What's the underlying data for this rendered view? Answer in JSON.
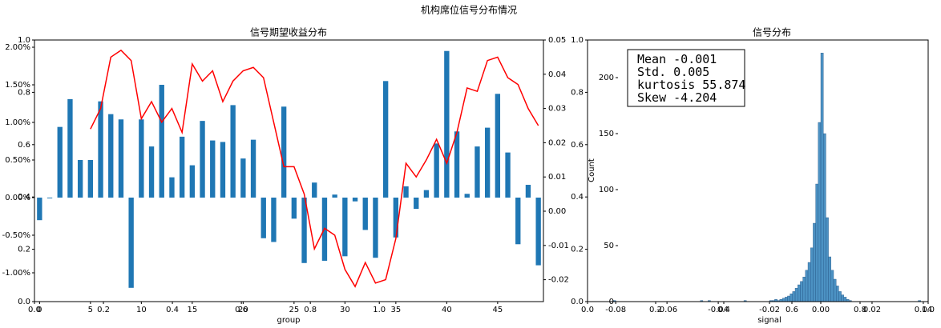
{
  "title": "机构席位信号分布情况",
  "chart_data": [
    {
      "type": "bar",
      "title": "信号期望收益分布",
      "xlabel": "group",
      "x": [
        0,
        1,
        2,
        3,
        4,
        5,
        6,
        7,
        8,
        9,
        10,
        11,
        12,
        13,
        14,
        15,
        16,
        17,
        18,
        19,
        20,
        21,
        22,
        23,
        24,
        25,
        26,
        27,
        28,
        29,
        30,
        31,
        32,
        33,
        34,
        35,
        36,
        37,
        38,
        39,
        40,
        41,
        42,
        43,
        44,
        45,
        46,
        47,
        48,
        49
      ],
      "series": [
        {
          "type": "bar",
          "color": "#1f77b4",
          "values": [
            -0.3,
            -0.01,
            0.94,
            1.31,
            0.5,
            0.5,
            1.28,
            1.11,
            1.04,
            -1.2,
            1.04,
            0.68,
            1.5,
            0.27,
            0.81,
            0.43,
            1.02,
            0.76,
            0.74,
            1.23,
            0.52,
            0.77,
            -0.54,
            -0.59,
            1.21,
            -0.28,
            -0.87,
            0.2,
            -0.84,
            0.04,
            -0.78,
            -0.05,
            -0.43,
            -0.8,
            1.55,
            -0.53,
            0.15,
            -0.15,
            0.1,
            0.72,
            1.95,
            0.88,
            0.05,
            0.68,
            0.93,
            1.38,
            0.6,
            -0.62,
            0.17,
            -0.9
          ]
        },
        {
          "type": "line",
          "color": "#ff0000",
          "axis": "y2",
          "values": [
            null,
            null,
            null,
            null,
            null,
            0.024,
            0.03,
            0.045,
            0.047,
            0.044,
            0.027,
            0.032,
            0.026,
            0.03,
            0.023,
            0.043,
            0.038,
            0.041,
            0.032,
            0.038,
            0.041,
            0.042,
            0.039,
            0.026,
            0.013,
            0.013,
            0.005,
            -0.011,
            -0.005,
            -0.007,
            -0.017,
            -0.022,
            -0.015,
            -0.021,
            -0.02,
            -0.008,
            0.014,
            0.01,
            0.015,
            0.021,
            0.014,
            0.023,
            0.036,
            0.035,
            0.044,
            0.045,
            0.039,
            0.037,
            0.03,
            0.025
          ]
        }
      ],
      "xlim": [
        -0.5,
        49.5
      ],
      "xticks": [
        0,
        5,
        10,
        15,
        20,
        25,
        30,
        35,
        40,
        45
      ],
      "ylim": [
        -1.383,
        2.096
      ],
      "yticks": [
        {
          "value": -1,
          "label": "-1.00%"
        },
        {
          "value": -0.5,
          "label": "-0.50%"
        },
        {
          "value": 0,
          "label": "0.00%"
        },
        {
          "value": 0.5,
          "label": "0.50%"
        },
        {
          "value": 1,
          "label": "1.00%"
        },
        {
          "value": 1.5,
          "label": "1.50%"
        },
        {
          "value": 2,
          "label": "2.00%"
        }
      ],
      "y2lim": [
        -0.0264,
        0.05
      ],
      "y2ticks": [
        -0.02,
        -0.01,
        {
          "value": 0,
          "label": "0.00"
        },
        0.01,
        0.02,
        0.03,
        0.04,
        0.05
      ],
      "frame": {
        "xlim": [
          0,
          1.476
        ],
        "ylim": [
          0,
          1
        ],
        "xticks": [
          {
            "value": 0,
            "label": "0.0"
          },
          0.2,
          0.4,
          0.6,
          0.8,
          {
            "value": 1,
            "label": "1.0"
          }
        ],
        "yticks": [
          {
            "value": 0,
            "label": "0.0"
          },
          0.2,
          0.4,
          0.6,
          0.8,
          {
            "value": 1,
            "label": "1.0"
          }
        ]
      }
    },
    {
      "type": "histogram",
      "title": "信号分布",
      "xlabel": "signal",
      "ylabel": "Count",
      "color": "#1f77b4",
      "bins": [
        -0.09,
        -0.081,
        -0.08,
        -0.047,
        -0.046,
        -0.044,
        -0.043,
        -0.03,
        -0.029,
        -0.02,
        -0.019,
        -0.018,
        -0.017,
        -0.016,
        -0.015,
        -0.014,
        -0.013,
        -0.012,
        -0.011,
        -0.01,
        -0.009,
        -0.008,
        -0.007,
        -0.006,
        -0.005,
        -0.004,
        -0.003,
        -0.002,
        -0.001,
        0,
        0.001,
        0.002,
        0.003,
        0.004,
        0.005,
        0.006,
        0.007,
        0.008,
        0.009,
        0.01,
        0.011,
        0.012,
        0.038,
        0.039,
        0.042
      ],
      "values": [
        0,
        1,
        0,
        1,
        0,
        1,
        0,
        1,
        0,
        1,
        1,
        2,
        1,
        2,
        3,
        4,
        5,
        7,
        9,
        12,
        15,
        18,
        22,
        28,
        35,
        48,
        70,
        105,
        160,
        222,
        150,
        75,
        40,
        28,
        20,
        14,
        9,
        6,
        4,
        2,
        1,
        0,
        1,
        0
      ],
      "xlim": [
        -0.091,
        0.0419
      ],
      "xticks": [
        -0.08,
        -0.06,
        -0.04,
        -0.02,
        {
          "value": 0,
          "label": "0.00"
        },
        0.02,
        0.04
      ],
      "ylim": [
        0,
        233.6
      ],
      "yticks": [
        0,
        50,
        100,
        150,
        200
      ],
      "annotation": [
        "Mean -0.001",
        "Std. 0.005",
        "kurtosis 55.874",
        "Skew -4.204"
      ],
      "frame": {
        "xlim": [
          0,
          1
        ],
        "ylim": [
          0,
          1
        ],
        "xticks": [
          {
            "value": 0,
            "label": "0.0"
          },
          0.2,
          0.4,
          0.6,
          0.8,
          {
            "value": 1,
            "label": "1.0"
          }
        ],
        "yticks": [
          {
            "value": 0,
            "label": "0.0"
          },
          0.2,
          0.4,
          0.6,
          0.8,
          {
            "value": 1,
            "label": "1.0"
          }
        ]
      }
    }
  ]
}
